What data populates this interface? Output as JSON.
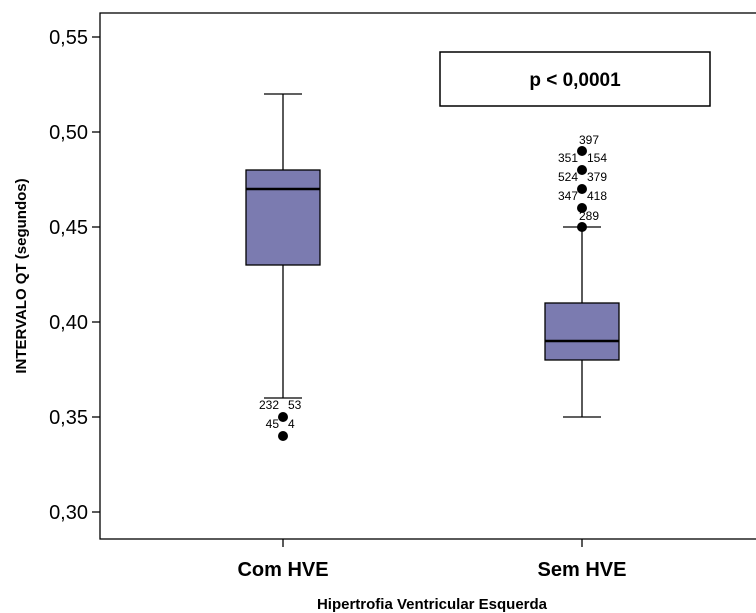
{
  "chart_data": {
    "type": "boxplot",
    "xlabel": "Hipertrofia Ventricular Esquerda",
    "ylabel": "INTERVALO QT (segundos)",
    "ylim": [
      0.29,
      0.565
    ],
    "yticks": [
      0.3,
      0.35,
      0.4,
      0.45,
      0.5,
      0.55
    ],
    "ytick_labels": [
      "0,30",
      "0,35",
      "0,40",
      "0,45",
      "0,50",
      "0,55"
    ],
    "categories": [
      "Com HVE",
      "Sem HVE"
    ],
    "box_color": "#7b7bb0",
    "grid": false,
    "annotation": "p < 0,0001",
    "boxes": [
      {
        "category": "Com HVE",
        "whisker_low": 0.36,
        "q1": 0.43,
        "median": 0.47,
        "q3": 0.48,
        "whisker_high": 0.52,
        "outliers": [
          {
            "value": 0.35,
            "labels": [
              "232",
              "53"
            ]
          },
          {
            "value": 0.34,
            "labels": [
              "45",
              "4"
            ]
          }
        ]
      },
      {
        "category": "Sem HVE",
        "whisker_low": 0.35,
        "q1": 0.38,
        "median": 0.39,
        "q3": 0.41,
        "whisker_high": 0.45,
        "outliers": [
          {
            "value": 0.49,
            "labels": [
              "397"
            ]
          },
          {
            "value": 0.48,
            "labels": [
              "351",
              "154"
            ]
          },
          {
            "value": 0.47,
            "labels": [
              "524",
              "379"
            ]
          },
          {
            "value": 0.46,
            "labels": [
              "347",
              "418"
            ]
          },
          {
            "value": 0.45,
            "labels": [
              "289"
            ]
          }
        ]
      }
    ]
  }
}
